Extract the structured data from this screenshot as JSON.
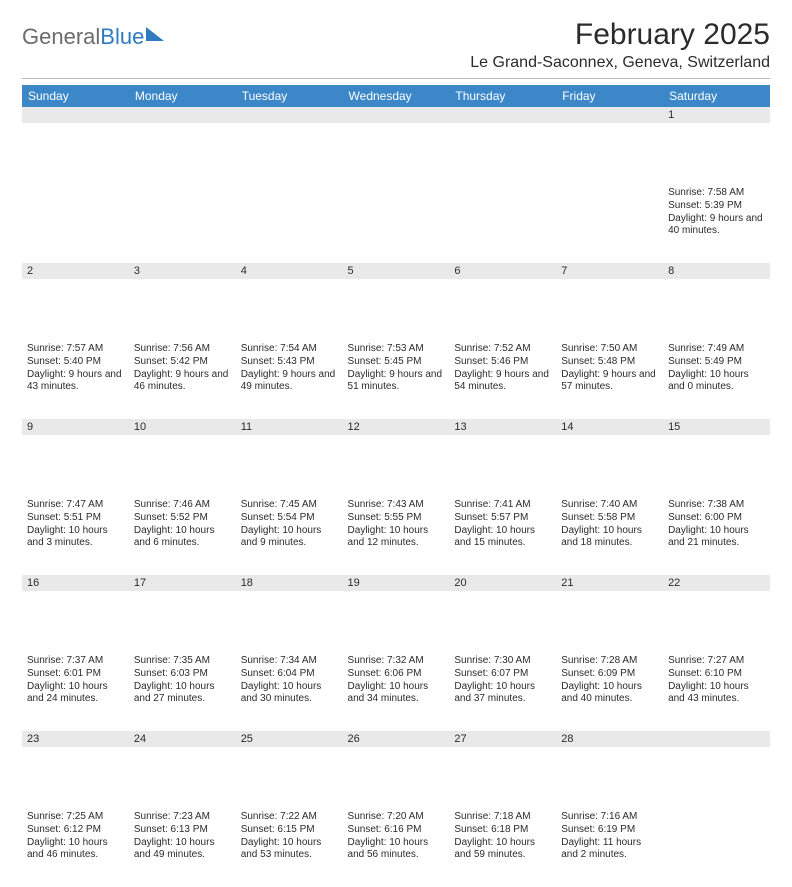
{
  "logo": {
    "text1": "General",
    "text2": "Blue"
  },
  "title": "February 2025",
  "location": "Le Grand-Saconnex, Geneva, Switzerland",
  "colors": {
    "header_bg": "#3c87c7",
    "header_fg": "#ffffff",
    "daynum_bg": "#e9e9e9",
    "text": "#2b2b2b",
    "logo_gray": "#6c6c6c",
    "logo_blue": "#2f7bbf",
    "rule": "#b8b8b8",
    "background": "#ffffff"
  },
  "typography": {
    "title_fontsize": 30,
    "location_fontsize": 16,
    "weekday_fontsize": 12,
    "daynum_fontsize": 11,
    "cell_fontsize": 10
  },
  "weekdays": [
    "Sunday",
    "Monday",
    "Tuesday",
    "Wednesday",
    "Thursday",
    "Friday",
    "Saturday"
  ],
  "weeks": [
    [
      {
        "n": "",
        "sunrise": "",
        "sunset": "",
        "daylight": ""
      },
      {
        "n": "",
        "sunrise": "",
        "sunset": "",
        "daylight": ""
      },
      {
        "n": "",
        "sunrise": "",
        "sunset": "",
        "daylight": ""
      },
      {
        "n": "",
        "sunrise": "",
        "sunset": "",
        "daylight": ""
      },
      {
        "n": "",
        "sunrise": "",
        "sunset": "",
        "daylight": ""
      },
      {
        "n": "",
        "sunrise": "",
        "sunset": "",
        "daylight": ""
      },
      {
        "n": "1",
        "sunrise": "Sunrise: 7:58 AM",
        "sunset": "Sunset: 5:39 PM",
        "daylight": "Daylight: 9 hours and 40 minutes."
      }
    ],
    [
      {
        "n": "2",
        "sunrise": "Sunrise: 7:57 AM",
        "sunset": "Sunset: 5:40 PM",
        "daylight": "Daylight: 9 hours and 43 minutes."
      },
      {
        "n": "3",
        "sunrise": "Sunrise: 7:56 AM",
        "sunset": "Sunset: 5:42 PM",
        "daylight": "Daylight: 9 hours and 46 minutes."
      },
      {
        "n": "4",
        "sunrise": "Sunrise: 7:54 AM",
        "sunset": "Sunset: 5:43 PM",
        "daylight": "Daylight: 9 hours and 49 minutes."
      },
      {
        "n": "5",
        "sunrise": "Sunrise: 7:53 AM",
        "sunset": "Sunset: 5:45 PM",
        "daylight": "Daylight: 9 hours and 51 minutes."
      },
      {
        "n": "6",
        "sunrise": "Sunrise: 7:52 AM",
        "sunset": "Sunset: 5:46 PM",
        "daylight": "Daylight: 9 hours and 54 minutes."
      },
      {
        "n": "7",
        "sunrise": "Sunrise: 7:50 AM",
        "sunset": "Sunset: 5:48 PM",
        "daylight": "Daylight: 9 hours and 57 minutes."
      },
      {
        "n": "8",
        "sunrise": "Sunrise: 7:49 AM",
        "sunset": "Sunset: 5:49 PM",
        "daylight": "Daylight: 10 hours and 0 minutes."
      }
    ],
    [
      {
        "n": "9",
        "sunrise": "Sunrise: 7:47 AM",
        "sunset": "Sunset: 5:51 PM",
        "daylight": "Daylight: 10 hours and 3 minutes."
      },
      {
        "n": "10",
        "sunrise": "Sunrise: 7:46 AM",
        "sunset": "Sunset: 5:52 PM",
        "daylight": "Daylight: 10 hours and 6 minutes."
      },
      {
        "n": "11",
        "sunrise": "Sunrise: 7:45 AM",
        "sunset": "Sunset: 5:54 PM",
        "daylight": "Daylight: 10 hours and 9 minutes."
      },
      {
        "n": "12",
        "sunrise": "Sunrise: 7:43 AM",
        "sunset": "Sunset: 5:55 PM",
        "daylight": "Daylight: 10 hours and 12 minutes."
      },
      {
        "n": "13",
        "sunrise": "Sunrise: 7:41 AM",
        "sunset": "Sunset: 5:57 PM",
        "daylight": "Daylight: 10 hours and 15 minutes."
      },
      {
        "n": "14",
        "sunrise": "Sunrise: 7:40 AM",
        "sunset": "Sunset: 5:58 PM",
        "daylight": "Daylight: 10 hours and 18 minutes."
      },
      {
        "n": "15",
        "sunrise": "Sunrise: 7:38 AM",
        "sunset": "Sunset: 6:00 PM",
        "daylight": "Daylight: 10 hours and 21 minutes."
      }
    ],
    [
      {
        "n": "16",
        "sunrise": "Sunrise: 7:37 AM",
        "sunset": "Sunset: 6:01 PM",
        "daylight": "Daylight: 10 hours and 24 minutes."
      },
      {
        "n": "17",
        "sunrise": "Sunrise: 7:35 AM",
        "sunset": "Sunset: 6:03 PM",
        "daylight": "Daylight: 10 hours and 27 minutes."
      },
      {
        "n": "18",
        "sunrise": "Sunrise: 7:34 AM",
        "sunset": "Sunset: 6:04 PM",
        "daylight": "Daylight: 10 hours and 30 minutes."
      },
      {
        "n": "19",
        "sunrise": "Sunrise: 7:32 AM",
        "sunset": "Sunset: 6:06 PM",
        "daylight": "Daylight: 10 hours and 34 minutes."
      },
      {
        "n": "20",
        "sunrise": "Sunrise: 7:30 AM",
        "sunset": "Sunset: 6:07 PM",
        "daylight": "Daylight: 10 hours and 37 minutes."
      },
      {
        "n": "21",
        "sunrise": "Sunrise: 7:28 AM",
        "sunset": "Sunset: 6:09 PM",
        "daylight": "Daylight: 10 hours and 40 minutes."
      },
      {
        "n": "22",
        "sunrise": "Sunrise: 7:27 AM",
        "sunset": "Sunset: 6:10 PM",
        "daylight": "Daylight: 10 hours and 43 minutes."
      }
    ],
    [
      {
        "n": "23",
        "sunrise": "Sunrise: 7:25 AM",
        "sunset": "Sunset: 6:12 PM",
        "daylight": "Daylight: 10 hours and 46 minutes."
      },
      {
        "n": "24",
        "sunrise": "Sunrise: 7:23 AM",
        "sunset": "Sunset: 6:13 PM",
        "daylight": "Daylight: 10 hours and 49 minutes."
      },
      {
        "n": "25",
        "sunrise": "Sunrise: 7:22 AM",
        "sunset": "Sunset: 6:15 PM",
        "daylight": "Daylight: 10 hours and 53 minutes."
      },
      {
        "n": "26",
        "sunrise": "Sunrise: 7:20 AM",
        "sunset": "Sunset: 6:16 PM",
        "daylight": "Daylight: 10 hours and 56 minutes."
      },
      {
        "n": "27",
        "sunrise": "Sunrise: 7:18 AM",
        "sunset": "Sunset: 6:18 PM",
        "daylight": "Daylight: 10 hours and 59 minutes."
      },
      {
        "n": "28",
        "sunrise": "Sunrise: 7:16 AM",
        "sunset": "Sunset: 6:19 PM",
        "daylight": "Daylight: 11 hours and 2 minutes."
      },
      {
        "n": "",
        "sunrise": "",
        "sunset": "",
        "daylight": ""
      }
    ]
  ]
}
